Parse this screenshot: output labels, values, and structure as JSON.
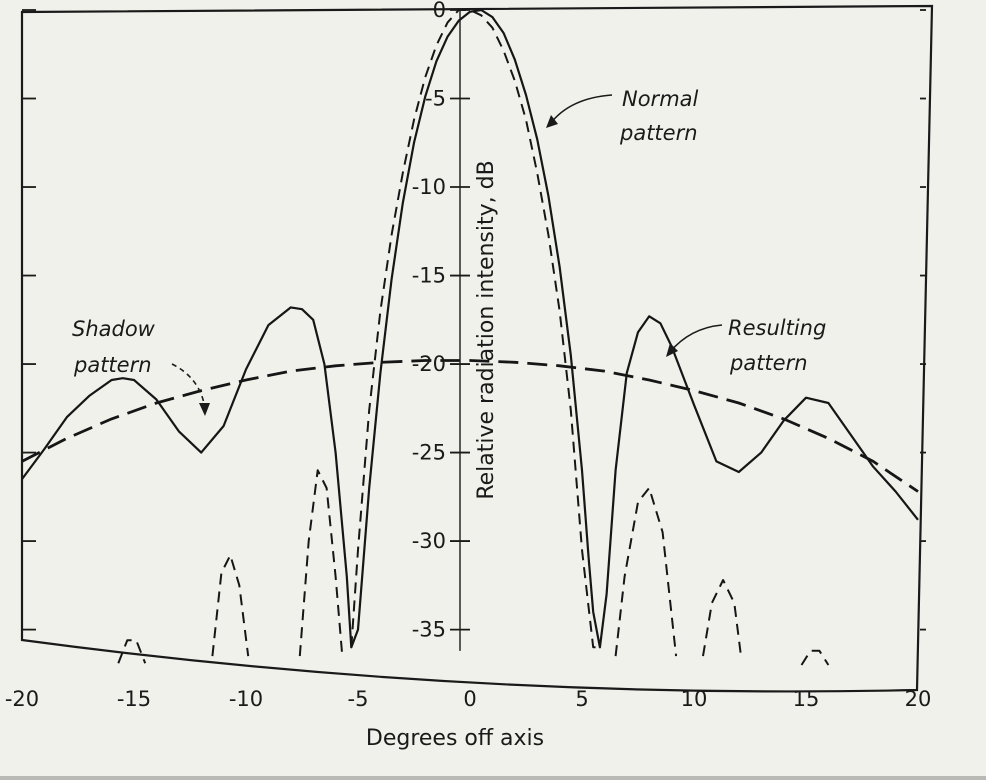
{
  "chart_data": {
    "type": "line",
    "xlabel": "Degrees off axis",
    "ylabel": "Relative radiation intensity, dB",
    "xlim": [
      -20,
      20
    ],
    "ylim": [
      -37,
      0
    ],
    "x_ticks": [
      "-20",
      "-15",
      "-10",
      "-5",
      "0",
      "5",
      "10",
      "15",
      "20"
    ],
    "y_ticks": [
      "0",
      "-5",
      "-10",
      "-15",
      "-20",
      "-25",
      "-30",
      "-35"
    ],
    "grid": false,
    "annotations": [
      {
        "line1": "Normal",
        "line2": "pattern"
      },
      {
        "line1": "Resulting",
        "line2": "pattern"
      },
      {
        "line1": "Shadow",
        "line2": "pattern"
      }
    ],
    "series": [
      {
        "style": "dashed",
        "x": [
          -5.3,
          -5.0,
          -4.5,
          -4.0,
          -3.5,
          -3.0,
          -2.5,
          -2.0,
          -1.5,
          -1.0,
          -0.5,
          0.0,
          0.5,
          1.0,
          1.5,
          2.0,
          2.5,
          3.0,
          3.5,
          4.0,
          4.5,
          5.0,
          5.5,
          5.8
        ],
        "y": [
          -36,
          -30.5,
          -22.6,
          -17.0,
          -12.7,
          -9.2,
          -6.2,
          -3.8,
          -2.0,
          -0.7,
          0.0,
          0.0,
          -0.3,
          -1.0,
          -2.3,
          -4.0,
          -6.2,
          -9.2,
          -12.7,
          -17.0,
          -22.6,
          -30.5,
          -36,
          -36
        ]
      },
      {
        "style": "solid",
        "x": [
          -20,
          -19,
          -18,
          -17,
          -16,
          -15.5,
          -15,
          -14,
          -13,
          -12,
          -11,
          -10,
          -9,
          -8,
          -7.5,
          -7,
          -6.5,
          -6,
          -5.5,
          -5.3,
          -5.0,
          -4.5,
          -4.0,
          -3.5,
          -3.0,
          -2.5,
          -2.0,
          -1.5,
          -1.0,
          -0.5,
          0.0,
          0.5,
          1.0,
          1.5,
          2.0,
          2.5,
          3.0,
          3.5,
          4.0,
          4.5,
          5.0,
          5.3,
          5.5,
          5.8,
          6.1,
          6.5,
          7.0,
          7.5,
          8.0,
          8.5,
          9.0,
          10,
          11,
          12,
          13,
          14,
          15,
          16,
          17,
          18,
          19,
          20
        ],
        "y": [
          -26.5,
          -24.8,
          -23.0,
          -21.8,
          -20.9,
          -20.8,
          -20.9,
          -22.0,
          -23.8,
          -25.0,
          -23.5,
          -20.3,
          -17.8,
          -16.8,
          -16.9,
          -17.5,
          -20.0,
          -25.0,
          -32.0,
          -36,
          -35.0,
          -27.0,
          -20.5,
          -15.2,
          -10.9,
          -7.5,
          -4.9,
          -2.9,
          -1.5,
          -0.6,
          -0.1,
          0.0,
          -0.4,
          -1.3,
          -2.8,
          -4.8,
          -7.3,
          -10.5,
          -14.5,
          -19.5,
          -26.0,
          -31.0,
          -34.0,
          -36,
          -33.0,
          -26.0,
          -20.5,
          -18.2,
          -17.3,
          -17.7,
          -19.0,
          -22.3,
          -25.5,
          -26.1,
          -25.0,
          -23.2,
          -21.9,
          -22.2,
          -24.0,
          -25.8,
          -27.2,
          -28.8
        ]
      },
      {
        "style": "long-dashed",
        "x": [
          -20,
          -18,
          -16,
          -14,
          -12,
          -10,
          -8,
          -6,
          -4,
          -2,
          0,
          2,
          4,
          6,
          8,
          10,
          12,
          14,
          16,
          18,
          20
        ],
        "y": [
          -25.5,
          -24.2,
          -23.1,
          -22.2,
          -21.5,
          -20.9,
          -20.4,
          -20.1,
          -19.9,
          -19.8,
          -19.8,
          -19.9,
          -20.1,
          -20.4,
          -20.9,
          -21.5,
          -22.2,
          -23.1,
          -24.2,
          -25.5,
          -27.2
        ]
      },
      {
        "style": "dashed",
        "x": [
          -7.6,
          -7.2,
          -6.8,
          -6.4,
          -6.0,
          -5.7
        ],
        "y": [
          -36.5,
          -30.0,
          -26.0,
          -27.0,
          -32.0,
          -36.5
        ]
      },
      {
        "style": "dashed",
        "x": [
          -11.5,
          -11.1,
          -10.7,
          -10.3,
          -9.9
        ],
        "y": [
          -36.5,
          -31.8,
          -30.8,
          -32.5,
          -36.5
        ]
      },
      {
        "style": "dashed",
        "x": [
          -15.7,
          -15.3,
          -14.9,
          -14.5
        ],
        "y": [
          -36.9,
          -35.6,
          -35.6,
          -36.9
        ]
      },
      {
        "style": "dashed",
        "x": [
          6.5,
          6.9,
          7.5,
          8.0,
          8.6,
          9.2
        ],
        "y": [
          -36.5,
          -32.0,
          -27.8,
          -27.0,
          -29.5,
          -36.5
        ]
      },
      {
        "style": "dashed",
        "x": [
          10.4,
          10.8,
          11.3,
          11.8,
          12.1
        ],
        "y": [
          -36.5,
          -33.5,
          -32.2,
          -33.5,
          -36.5
        ]
      },
      {
        "style": "dashed",
        "x": [
          14.8,
          15.2,
          15.6,
          16.0
        ],
        "y": [
          -37.0,
          -36.2,
          -36.2,
          -37.0
        ]
      }
    ]
  }
}
